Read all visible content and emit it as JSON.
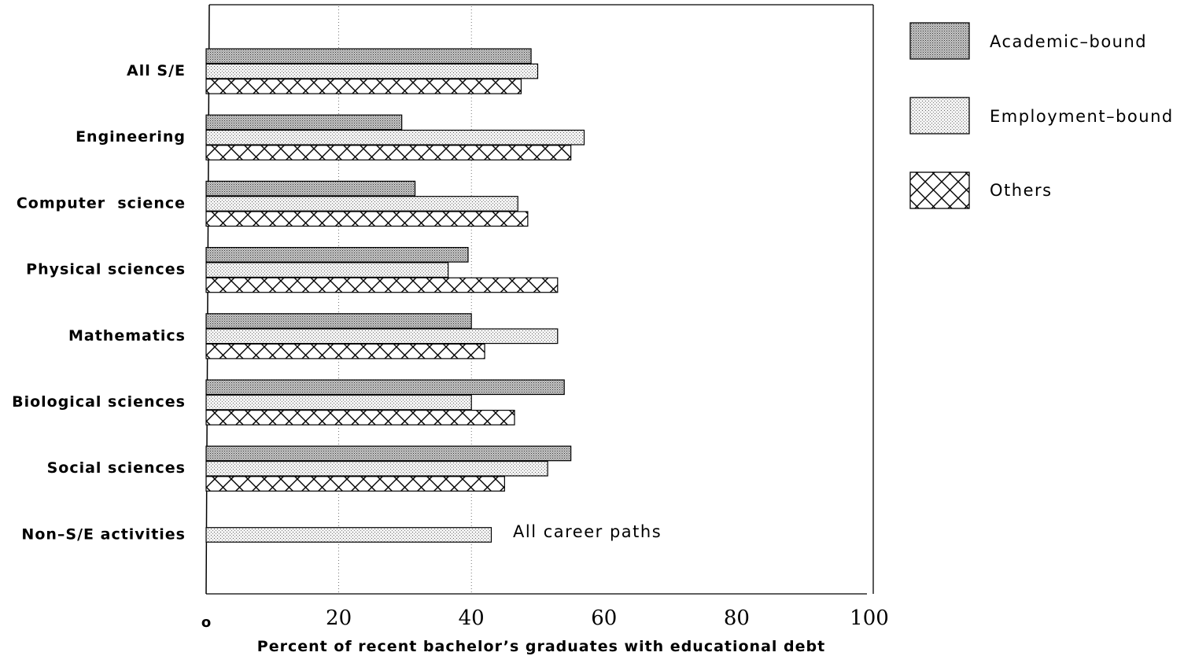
{
  "chart_data": {
    "type": "bar",
    "orientation": "horizontal",
    "xlabel": "Percent of recent bachelor’s graduates with educational debt",
    "xlim": [
      0,
      100
    ],
    "xticks": [
      "o",
      "20",
      "40",
      "60",
      "80",
      "100"
    ],
    "grid": "dotted vertical lines at 20 and 40",
    "legend_position": "right",
    "categories": [
      "All S/E",
      "Engineering",
      "Computer  science",
      "Physical sciences",
      "Mathematics",
      "Biological sciences",
      "Social sciences",
      "Non–S/E activities"
    ],
    "series": [
      {
        "name": "Academic–bound",
        "pattern": "dense-dots",
        "values": [
          49,
          29.5,
          31.5,
          39.5,
          40,
          54,
          55,
          null
        ]
      },
      {
        "name": "Employment–bound",
        "pattern": "light-dots",
        "values": [
          50,
          57,
          47,
          36.5,
          53,
          40,
          51.5,
          43
        ]
      },
      {
        "name": "Others",
        "pattern": "crosshatch",
        "values": [
          47.5,
          55,
          48.5,
          53,
          42,
          46.5,
          45,
          null
        ]
      }
    ],
    "annotations": [
      {
        "category": "Non–S/E activities",
        "text": "All career paths"
      }
    ]
  }
}
